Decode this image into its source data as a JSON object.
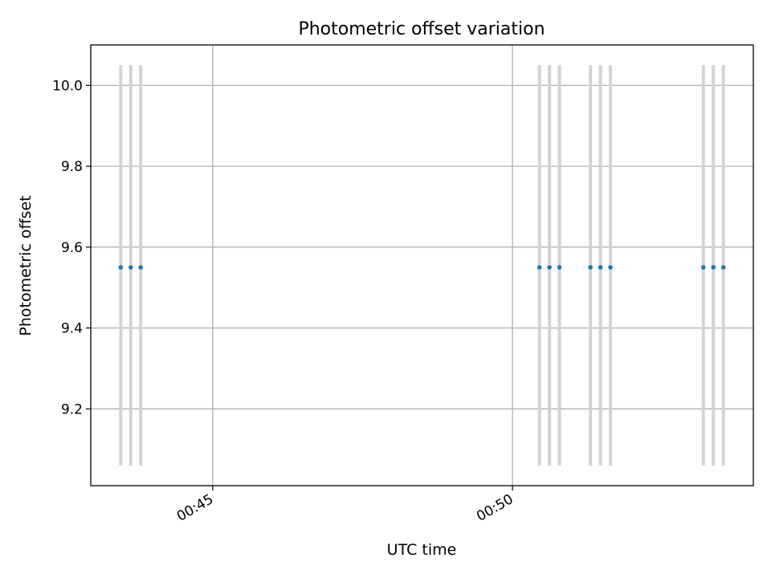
{
  "chart_data": {
    "type": "scatter",
    "title": "Photometric offset variation",
    "xlabel": "UTC time",
    "ylabel": "Photometric offset",
    "x_tick_labels": [
      "00:45",
      "00:50"
    ],
    "y_ticks": [
      9.2,
      9.4,
      9.6,
      9.8,
      10.0
    ],
    "y_tick_labels": [
      "9.2",
      "9.4",
      "9.6",
      "9.8",
      "10.0"
    ],
    "xlim": [
      "00:42:58",
      "00:54:01"
    ],
    "ylim": [
      9.01,
      10.1
    ],
    "grid": true,
    "points": [
      {
        "x": "00:43:28",
        "y": 9.55
      },
      {
        "x": "00:43:38",
        "y": 9.55
      },
      {
        "x": "00:43:48",
        "y": 9.55
      },
      {
        "x": "00:50:27",
        "y": 9.55
      },
      {
        "x": "00:50:37",
        "y": 9.55
      },
      {
        "x": "00:50:47",
        "y": 9.55
      },
      {
        "x": "00:51:18",
        "y": 9.55
      },
      {
        "x": "00:51:28",
        "y": 9.55
      },
      {
        "x": "00:51:38",
        "y": 9.55
      },
      {
        "x": "00:53:11",
        "y": 9.55
      },
      {
        "x": "00:53:21",
        "y": 9.55
      },
      {
        "x": "00:53:31",
        "y": 9.55
      }
    ],
    "error_bar_range": [
      9.06,
      10.05
    ],
    "colors": {
      "points": "#1f77b4",
      "error_bars": "#d3d3d3",
      "grid": "#b0b0b0"
    }
  }
}
